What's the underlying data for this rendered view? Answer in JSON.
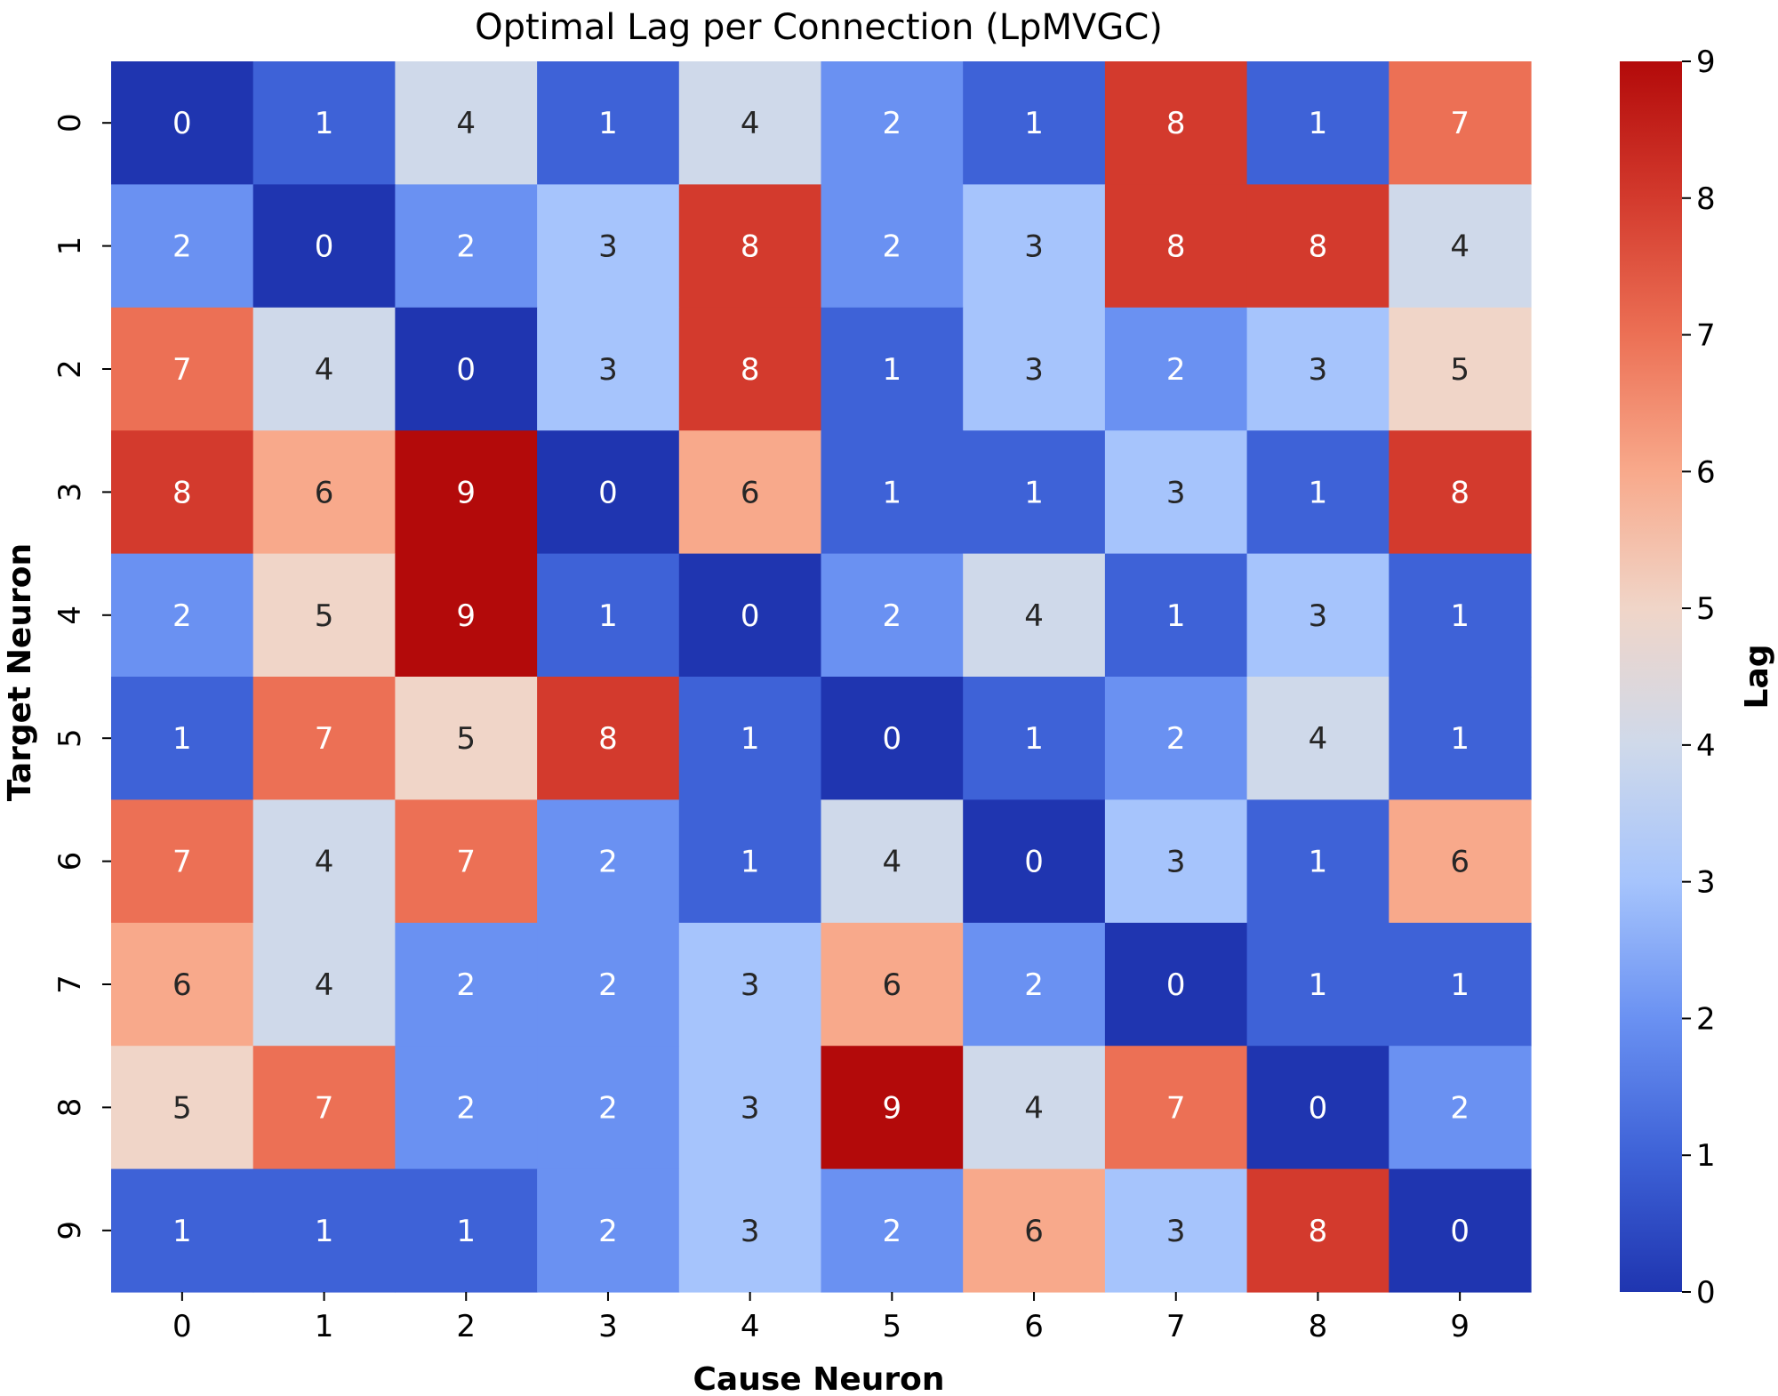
{
  "chart_data": {
    "type": "heatmap",
    "title": "Optimal Lag per Connection (LpMVGC)",
    "xlabel": "Cause Neuron",
    "ylabel": "Target Neuron",
    "x_categories": [
      "0",
      "1",
      "2",
      "3",
      "4",
      "5",
      "6",
      "7",
      "8",
      "9"
    ],
    "y_categories": [
      "0",
      "1",
      "2",
      "3",
      "4",
      "5",
      "6",
      "7",
      "8",
      "9"
    ],
    "values": [
      [
        0,
        1,
        4,
        1,
        4,
        2,
        1,
        8,
        1,
        7
      ],
      [
        2,
        0,
        2,
        3,
        8,
        2,
        3,
        8,
        8,
        4
      ],
      [
        7,
        4,
        0,
        3,
        8,
        1,
        3,
        2,
        3,
        5
      ],
      [
        8,
        6,
        9,
        0,
        6,
        1,
        1,
        3,
        1,
        8
      ],
      [
        2,
        5,
        9,
        1,
        0,
        2,
        4,
        1,
        3,
        1
      ],
      [
        1,
        7,
        5,
        8,
        1,
        0,
        1,
        2,
        4,
        1
      ],
      [
        7,
        4,
        7,
        2,
        1,
        4,
        0,
        3,
        1,
        6
      ],
      [
        6,
        4,
        2,
        2,
        3,
        6,
        2,
        0,
        1,
        1
      ],
      [
        5,
        7,
        2,
        2,
        3,
        9,
        4,
        7,
        0,
        2
      ],
      [
        1,
        1,
        1,
        2,
        3,
        2,
        6,
        3,
        8,
        0
      ]
    ],
    "value_range": [
      0,
      9
    ],
    "colormap": "coolwarm",
    "colorbar": {
      "label": "Lag",
      "ticks": [
        "0",
        "1",
        "2",
        "3",
        "4",
        "5",
        "6",
        "7",
        "8",
        "9"
      ]
    },
    "colors": {
      "0": "#1f35b0",
      "1": "#3e62d7",
      "2": "#6a91f2",
      "3": "#a6c4fc",
      "4": "#cfd9ea",
      "5": "#f0d5c8",
      "6": "#f8a98b",
      "7": "#ec7055",
      "8": "#d33a2d",
      "9": "#b30a0a"
    }
  }
}
